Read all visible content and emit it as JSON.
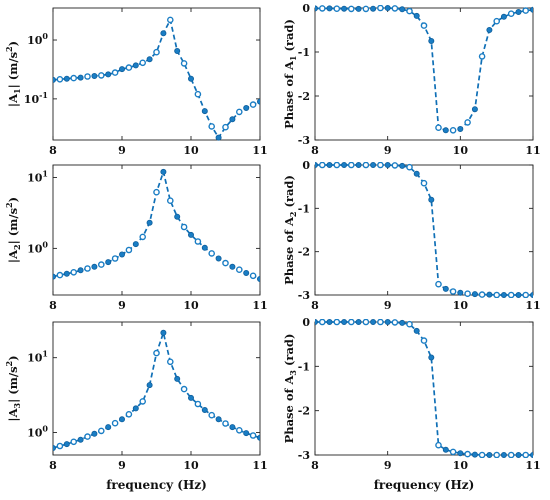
{
  "xlabel": "frequency (Hz)",
  "chart_data": [
    {
      "id": "amp1",
      "type": "line",
      "ylabel_main": "|A",
      "ylabel_sub": "1",
      "ylabel_unit": "| (m/s",
      "ylabel_sup": "2",
      "ylabel_end": ")",
      "yscale": "log",
      "ylim": [
        0.02,
        3.5
      ],
      "xlim": [
        8,
        11
      ],
      "xticks": [
        8,
        9,
        10,
        11
      ],
      "yticks": [
        {
          "value": 1,
          "base": "10",
          "exp": "0"
        },
        {
          "value": 0.1,
          "base": "10",
          "exp": "-1"
        }
      ],
      "x": [
        8.0,
        8.1,
        8.2,
        8.3,
        8.4,
        8.5,
        8.6,
        8.7,
        8.8,
        8.9,
        9.0,
        9.1,
        9.2,
        9.3,
        9.4,
        9.5,
        9.6,
        9.7,
        9.8,
        9.9,
        10.0,
        10.1,
        10.2,
        10.3,
        10.4,
        10.5,
        10.6,
        10.7,
        10.8,
        10.9,
        11.0
      ],
      "y": [
        0.21,
        0.215,
        0.22,
        0.225,
        0.23,
        0.24,
        0.245,
        0.25,
        0.26,
        0.28,
        0.32,
        0.34,
        0.37,
        0.41,
        0.47,
        0.62,
        1.3,
        2.2,
        0.65,
        0.4,
        0.22,
        0.12,
        0.062,
        0.034,
        0.022,
        0.033,
        0.045,
        0.06,
        0.07,
        0.08,
        0.09
      ]
    },
    {
      "id": "phase1",
      "type": "line",
      "ylabel_main": "Phase of A",
      "ylabel_sub": "1",
      "ylabel_unit": " (rad)",
      "ylabel_sup": "",
      "ylabel_end": "",
      "yscale": "linear",
      "ylim": [
        -3,
        0
      ],
      "xlim": [
        8,
        11
      ],
      "xticks": [
        8,
        9,
        10,
        11
      ],
      "yticks": [
        {
          "value": 0,
          "label": "0"
        },
        {
          "value": -1,
          "label": "-1"
        },
        {
          "value": -2,
          "label": "-2"
        },
        {
          "value": -3,
          "label": "-3"
        }
      ],
      "x": [
        8.0,
        8.1,
        8.2,
        8.3,
        8.4,
        8.5,
        8.6,
        8.7,
        8.8,
        8.9,
        9.0,
        9.1,
        9.2,
        9.3,
        9.4,
        9.5,
        9.6,
        9.7,
        9.8,
        9.9,
        10.0,
        10.1,
        10.2,
        10.3,
        10.4,
        10.5,
        10.6,
        10.7,
        10.8,
        10.9,
        11.0
      ],
      "y": [
        -0.01,
        -0.01,
        -0.01,
        -0.015,
        -0.015,
        -0.02,
        -0.02,
        -0.02,
        -0.015,
        0.0,
        0.0,
        -0.01,
        -0.03,
        -0.07,
        -0.18,
        -0.4,
        -0.75,
        -2.72,
        -2.78,
        -2.78,
        -2.75,
        -2.6,
        -2.3,
        -1.1,
        -0.5,
        -0.3,
        -0.2,
        -0.13,
        -0.09,
        -0.06,
        -0.04
      ]
    },
    {
      "id": "amp2",
      "type": "line",
      "ylabel_main": "|A",
      "ylabel_sub": "2",
      "ylabel_unit": "| (m/s",
      "ylabel_sup": "2",
      "ylabel_end": ")",
      "yscale": "log",
      "ylim": [
        0.22,
        15
      ],
      "xlim": [
        8,
        11
      ],
      "xticks": [
        8,
        9,
        10,
        11
      ],
      "yticks": [
        {
          "value": 10,
          "base": "10",
          "exp": "1"
        },
        {
          "value": 1,
          "base": "10",
          "exp": "0"
        }
      ],
      "x": [
        8.0,
        8.1,
        8.2,
        8.3,
        8.4,
        8.5,
        8.6,
        8.7,
        8.8,
        8.9,
        9.0,
        9.1,
        9.2,
        9.3,
        9.4,
        9.5,
        9.6,
        9.7,
        9.8,
        9.9,
        10.0,
        10.1,
        10.2,
        10.3,
        10.4,
        10.5,
        10.6,
        10.7,
        10.8,
        10.9,
        11.0
      ],
      "y": [
        0.4,
        0.42,
        0.44,
        0.46,
        0.49,
        0.52,
        0.55,
        0.59,
        0.64,
        0.72,
        0.82,
        0.95,
        1.15,
        1.45,
        2.3,
        6.2,
        12.0,
        4.7,
        2.8,
        2.0,
        1.55,
        1.25,
        1.02,
        0.85,
        0.72,
        0.62,
        0.55,
        0.5,
        0.45,
        0.41,
        0.37
      ]
    },
    {
      "id": "phase2",
      "type": "line",
      "ylabel_main": "Phase of A",
      "ylabel_sub": "2",
      "ylabel_unit": " (rad)",
      "ylabel_sup": "",
      "ylabel_end": "",
      "yscale": "linear",
      "ylim": [
        -3,
        0
      ],
      "xlim": [
        8,
        11
      ],
      "xticks": [
        8,
        9,
        10,
        11
      ],
      "yticks": [
        {
          "value": 0,
          "label": "0"
        },
        {
          "value": -1,
          "label": "-1"
        },
        {
          "value": -2,
          "label": "-2"
        },
        {
          "value": -3,
          "label": "-3"
        }
      ],
      "x": [
        8.0,
        8.1,
        8.2,
        8.3,
        8.4,
        8.5,
        8.6,
        8.7,
        8.8,
        8.9,
        9.0,
        9.1,
        9.2,
        9.3,
        9.4,
        9.5,
        9.6,
        9.7,
        9.8,
        9.9,
        10.0,
        10.1,
        10.2,
        10.3,
        10.4,
        10.5,
        10.6,
        10.7,
        10.8,
        10.9,
        11.0
      ],
      "y": [
        0.0,
        0.0,
        0.0,
        0.0,
        0.0,
        0.0,
        0.0,
        0.0,
        0.0,
        0.0,
        0.0,
        -0.01,
        -0.02,
        -0.05,
        -0.2,
        -0.42,
        -0.8,
        -2.75,
        -2.86,
        -2.92,
        -2.95,
        -2.97,
        -2.98,
        -2.99,
        -2.99,
        -3.0,
        -3.0,
        -3.0,
        -3.0,
        -3.0,
        -3.0
      ]
    },
    {
      "id": "amp3",
      "type": "line",
      "ylabel_main": "|A",
      "ylabel_sub": "3",
      "ylabel_unit": "| (m/s",
      "ylabel_sup": "2",
      "ylabel_end": ")",
      "yscale": "log",
      "ylim": [
        0.5,
        30
      ],
      "xlim": [
        8,
        11
      ],
      "xticks": [
        8,
        9,
        10,
        11
      ],
      "yticks": [
        {
          "value": 10,
          "base": "10",
          "exp": "1"
        },
        {
          "value": 1,
          "base": "10",
          "exp": "0"
        }
      ],
      "x": [
        8.0,
        8.1,
        8.2,
        8.3,
        8.4,
        8.5,
        8.6,
        8.7,
        8.8,
        8.9,
        9.0,
        9.1,
        9.2,
        9.3,
        9.4,
        9.5,
        9.6,
        9.7,
        9.8,
        9.9,
        10.0,
        10.1,
        10.2,
        10.3,
        10.4,
        10.5,
        10.6,
        10.7,
        10.8,
        10.9,
        11.0
      ],
      "y": [
        0.62,
        0.66,
        0.7,
        0.75,
        0.8,
        0.88,
        0.96,
        1.05,
        1.18,
        1.33,
        1.5,
        1.75,
        2.1,
        2.6,
        4.3,
        11.5,
        21.5,
        8.8,
        5.2,
        3.8,
        2.9,
        2.4,
        2.0,
        1.7,
        1.5,
        1.32,
        1.18,
        1.07,
        0.98,
        0.91,
        0.85
      ]
    },
    {
      "id": "phase3",
      "type": "line",
      "ylabel_main": "Phase of A",
      "ylabel_sub": "3",
      "ylabel_unit": " (rad)",
      "ylabel_sup": "",
      "ylabel_end": "",
      "yscale": "linear",
      "ylim": [
        -3,
        0
      ],
      "xlim": [
        8,
        11
      ],
      "xticks": [
        8,
        9,
        10,
        11
      ],
      "yticks": [
        {
          "value": 0,
          "label": "0"
        },
        {
          "value": -1,
          "label": "-1"
        },
        {
          "value": -2,
          "label": "-2"
        },
        {
          "value": -3,
          "label": "-3"
        }
      ],
      "x": [
        8.0,
        8.1,
        8.2,
        8.3,
        8.4,
        8.5,
        8.6,
        8.7,
        8.8,
        8.9,
        9.0,
        9.1,
        9.2,
        9.3,
        9.4,
        9.5,
        9.6,
        9.7,
        9.8,
        9.9,
        10.0,
        10.1,
        10.2,
        10.3,
        10.4,
        10.5,
        10.6,
        10.7,
        10.8,
        10.9,
        11.0
      ],
      "y": [
        0.0,
        0.0,
        0.0,
        0.0,
        0.0,
        0.0,
        0.0,
        0.0,
        0.0,
        0.0,
        0.0,
        -0.01,
        -0.02,
        -0.05,
        -0.2,
        -0.42,
        -0.8,
        -2.78,
        -2.88,
        -2.93,
        -2.96,
        -2.98,
        -2.99,
        -3.0,
        -3.0,
        -3.0,
        -3.0,
        -3.0,
        -3.0,
        -3.0,
        -3.0
      ]
    }
  ]
}
